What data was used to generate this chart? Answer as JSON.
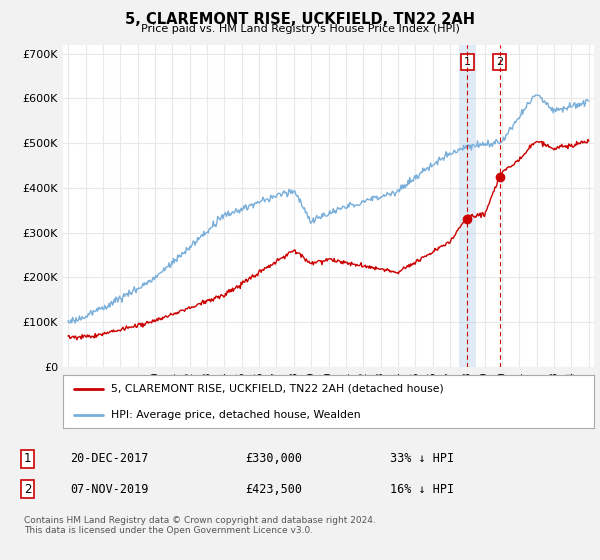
{
  "title": "5, CLAREMONT RISE, UCKFIELD, TN22 2AH",
  "subtitle": "Price paid vs. HM Land Registry's House Price Index (HPI)",
  "ylim": [
    0,
    720000
  ],
  "yticks": [
    0,
    100000,
    200000,
    300000,
    400000,
    500000,
    600000,
    700000
  ],
  "ytick_labels": [
    "£0",
    "£100K",
    "£200K",
    "£300K",
    "£400K",
    "£500K",
    "£600K",
    "£700K"
  ],
  "background_color": "#f0f0f0",
  "plot_bg_color": "#ffffff",
  "grid_color": "#e0e0e0",
  "red_line_color": "#cc0000",
  "blue_line_color": "#7aafda",
  "shade_color": "#c8dff0",
  "transaction1_year": 2018.0,
  "transaction1_value": 330000,
  "transaction1_date": "20-DEC-2017",
  "transaction1_price": "£330,000",
  "transaction1_hpi": "33% ↓ HPI",
  "transaction2_year": 2019.87,
  "transaction2_value": 423500,
  "transaction2_date": "07-NOV-2019",
  "transaction2_price": "£423,500",
  "transaction2_hpi": "16% ↓ HPI",
  "legend_line1": "5, CLAREMONT RISE, UCKFIELD, TN22 2AH (detached house)",
  "legend_line2": "HPI: Average price, detached house, Wealden",
  "footer": "Contains HM Land Registry data © Crown copyright and database right 2024.\nThis data is licensed under the Open Government Licence v3.0."
}
